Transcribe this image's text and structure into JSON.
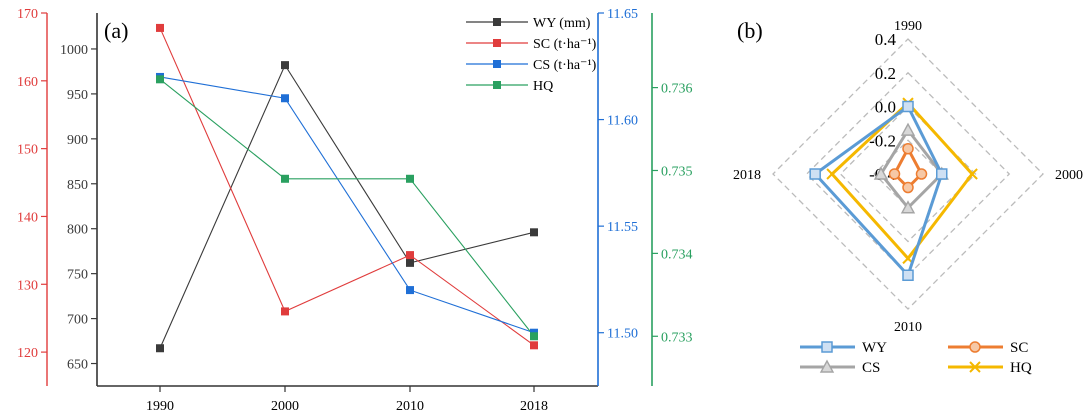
{
  "colors": {
    "wy": "#3a3a3a",
    "sc": "#e03c3c",
    "cs": "#1f6fd6",
    "hq": "#2aa060",
    "radar_wy": "#5b9bd5",
    "radar_sc": "#ed7d31",
    "radar_cs": "#a5a5a5",
    "radar_hq": "#f5b800",
    "grid": "#bbbbbb",
    "axis": "#333333"
  },
  "chart_data": [
    {
      "panel_label": "(a)",
      "type": "line",
      "categories": [
        "1990",
        "2000",
        "2010",
        "2018"
      ],
      "series": [
        {
          "key": "wy",
          "name": "WY (mm)",
          "axis": "wy",
          "values": [
            667,
            982,
            762,
            796
          ]
        },
        {
          "key": "sc",
          "name": "SC (t·ha⁻¹)",
          "axis": "sc",
          "values": [
            167.8,
            126.0,
            134.3,
            121.0
          ]
        },
        {
          "key": "cs",
          "name": "CS (t·ha⁻¹)",
          "axis": "cs",
          "values": [
            11.62,
            11.61,
            11.52,
            11.5
          ]
        },
        {
          "key": "hq",
          "name": "HQ",
          "axis": "hq",
          "values": [
            0.7361,
            0.7349,
            0.7349,
            0.733
          ]
        }
      ],
      "axes": {
        "wy": {
          "ylim": [
            625,
            1040
          ],
          "ticks": [
            "650",
            "700",
            "750",
            "800",
            "850",
            "900",
            "950",
            "1000"
          ],
          "color": "#3a3a3a"
        },
        "sc": {
          "ylim": [
            115,
            170
          ],
          "ticks": [
            "120",
            "130",
            "140",
            "150",
            "160",
            "170"
          ],
          "color": "#e03c3c"
        },
        "cs": {
          "ylim": [
            11.475,
            11.65
          ],
          "ticks": [
            "11.50",
            "11.55",
            "11.60",
            "11.65"
          ],
          "color": "#1f6fd6"
        },
        "hq": {
          "ylim": [
            0.7324,
            0.7369
          ],
          "ticks": [
            "0.733",
            "0.734",
            "0.735",
            "0.736"
          ],
          "color": "#2aa060"
        }
      },
      "legend": "top-right"
    },
    {
      "panel_label": "(b)",
      "type": "radar",
      "directions": [
        "1990",
        "2000",
        "2010",
        "2018"
      ],
      "r_range": [
        -0.4,
        0.4
      ],
      "r_ticks": [
        "0.4",
        "0.2",
        "0.0",
        "-0.2",
        "-0.4"
      ],
      "series": [
        {
          "key": "radar_wy",
          "name": "WY",
          "marker": "square",
          "values": [
            0.0,
            -0.2,
            0.2,
            0.15
          ]
        },
        {
          "key": "radar_sc",
          "name": "SC",
          "marker": "circle",
          "values": [
            -0.25,
            -0.32,
            -0.32,
            -0.32
          ]
        },
        {
          "key": "radar_cs",
          "name": "CS",
          "marker": "triangle",
          "values": [
            -0.14,
            -0.2,
            -0.2,
            -0.24
          ]
        },
        {
          "key": "radar_hq",
          "name": "HQ",
          "marker": "x",
          "values": [
            0.02,
            -0.02,
            0.1,
            0.05
          ]
        }
      ],
      "legend": "bottom"
    }
  ]
}
